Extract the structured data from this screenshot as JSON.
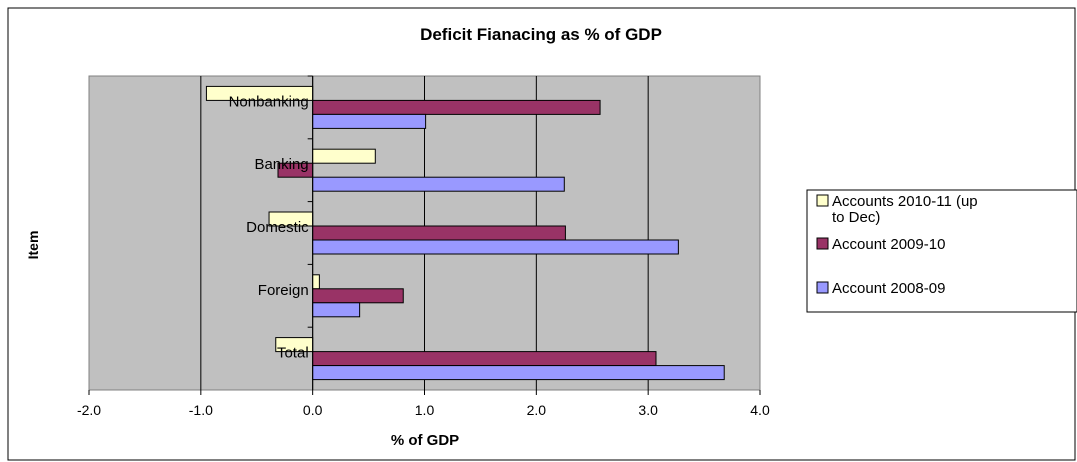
{
  "chart_data": {
    "type": "bar",
    "orientation": "horizontal",
    "title": "Deficit Fianacing as % of GDP",
    "xlabel": "% of GDP",
    "ylabel": "Item",
    "categories": [
      "Nonbanking",
      "Banking",
      "Domestic",
      "Foreign",
      "Total"
    ],
    "xlim": [
      -2.0,
      4.0
    ],
    "xticks": [
      "-2.0",
      "-1.0",
      "0.0",
      "1.0",
      "2.0",
      "3.0",
      "4.0"
    ],
    "grid": "vertical",
    "legend_position": "right",
    "plot_background": "#c0c0c0",
    "series": [
      {
        "name": "Accounts 2010-11 (up to Dec)",
        "legend_lines": [
          "Accounts 2010-11 (up",
          "to Dec)"
        ],
        "color": "#ffffcc",
        "values": [
          -0.95,
          0.56,
          -0.39,
          0.06,
          -0.33
        ]
      },
      {
        "name": "Account 2009-10",
        "legend_lines": [
          "Account 2009-10"
        ],
        "color": "#993366",
        "values": [
          2.57,
          -0.31,
          2.26,
          0.81,
          3.07
        ]
      },
      {
        "name": "Account 2008-09",
        "legend_lines": [
          "Account 2008-09"
        ],
        "color": "#9999ff",
        "values": [
          1.01,
          2.25,
          3.27,
          0.42,
          3.68
        ]
      }
    ]
  }
}
